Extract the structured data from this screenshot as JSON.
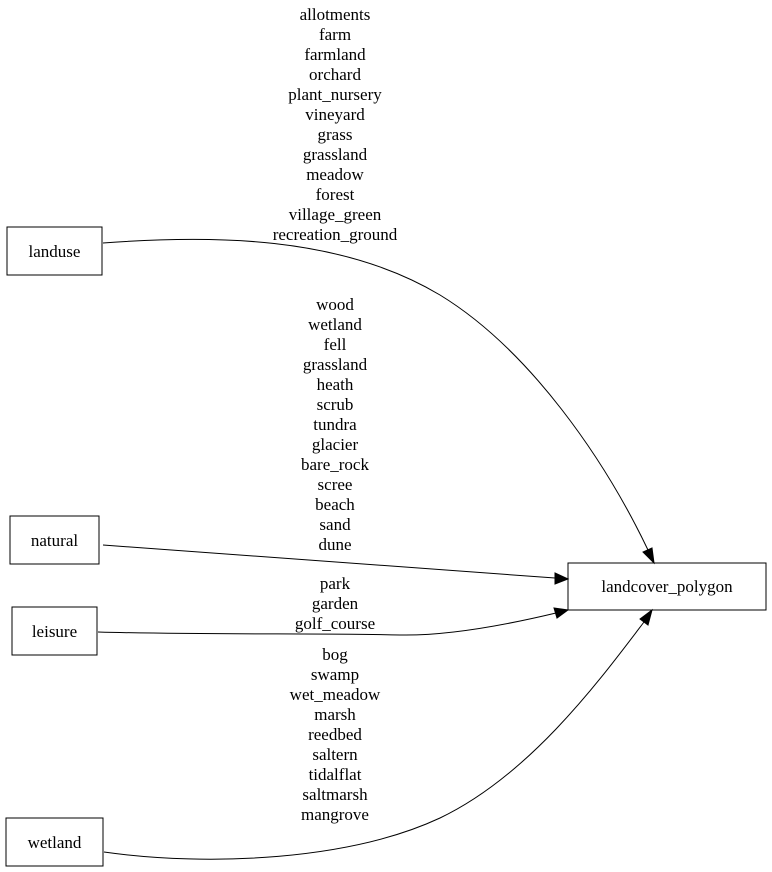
{
  "nodes": {
    "landuse": "landuse",
    "natural": "natural",
    "leisure": "leisure",
    "wetland": "wetland",
    "target": "landcover_polygon"
  },
  "edges": {
    "landuse": [
      "allotments",
      "farm",
      "farmland",
      "orchard",
      "plant_nursery",
      "vineyard",
      "grass",
      "grassland",
      "meadow",
      "forest",
      "village_green",
      "recreation_ground"
    ],
    "natural": [
      "wood",
      "wetland",
      "fell",
      "grassland",
      "heath",
      "scrub",
      "tundra",
      "glacier",
      "bare_rock",
      "scree",
      "beach",
      "sand",
      "dune"
    ],
    "leisure": [
      "park",
      "garden",
      "golf_course"
    ],
    "wetland": [
      "bog",
      "swamp",
      "wet_meadow",
      "marsh",
      "reedbed",
      "saltern",
      "tidalflat",
      "saltmarsh",
      "mangrove"
    ]
  }
}
